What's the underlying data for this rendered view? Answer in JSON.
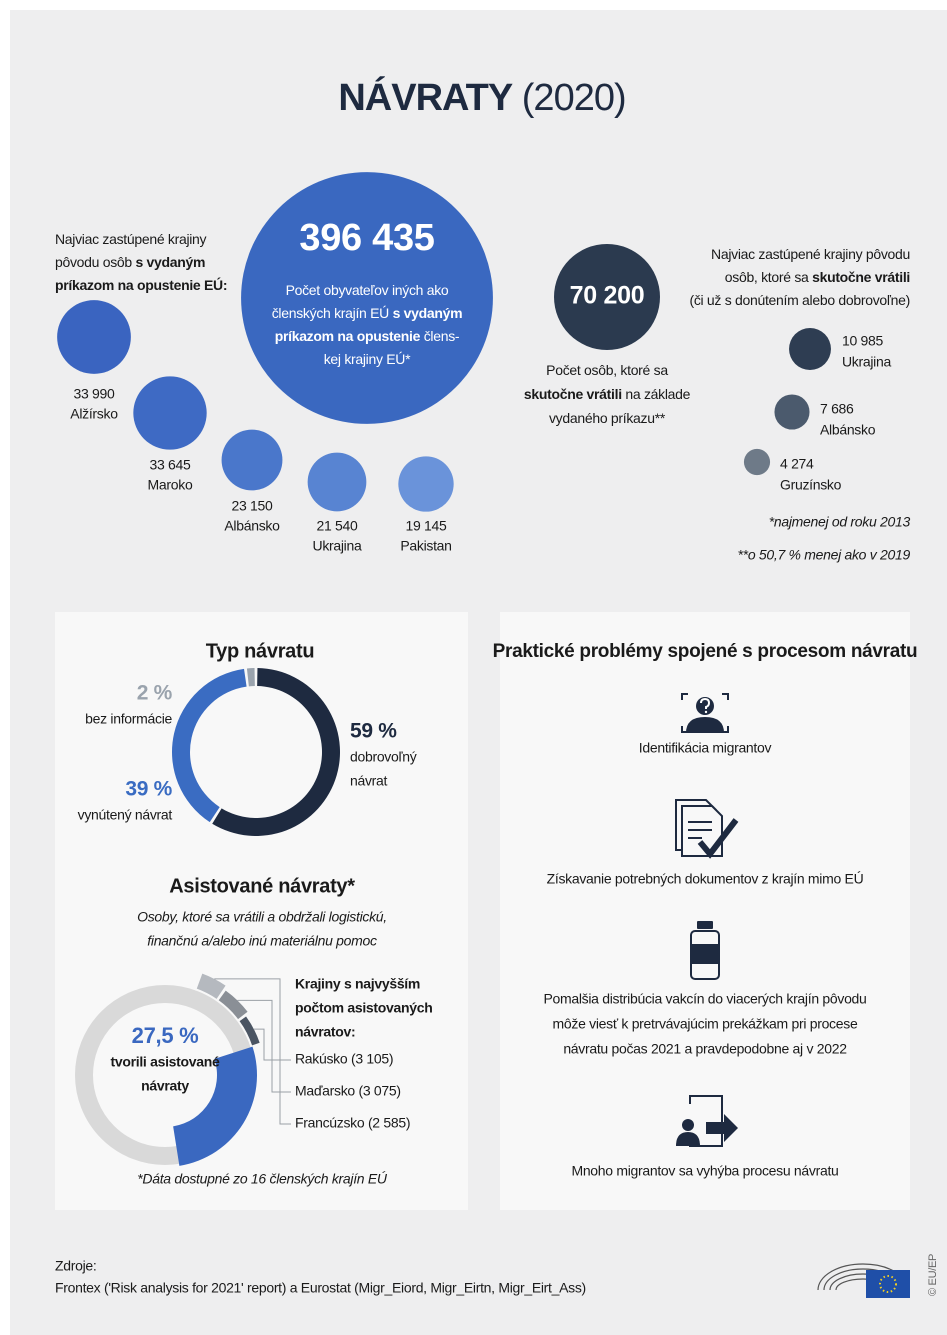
{
  "title": {
    "main": "NÁVRATY",
    "year": "(2020)"
  },
  "orders": {
    "intro": [
      [
        {
          "text": "Najviac zastúpené krajiny"
        }
      ],
      [
        {
          "text": "pôvodu osôb "
        },
        {
          "text": "s vydaným",
          "bold": true
        }
      ],
      [
        {
          "text": "príkazom na opustenie EÚ:",
          "bold": true
        }
      ]
    ],
    "total": {
      "value": 396435,
      "label": "396 435"
    },
    "color": "#3a68c0",
    "description": [
      [
        {
          "text": "Počet obyvateľov iných ako"
        }
      ],
      [
        {
          "text": "členských krajín EÚ "
        },
        {
          "text": "s vydaným",
          "bold": true
        }
      ],
      [
        {
          "text": "príkazom na opustenie",
          "bold": true
        },
        {
          "text": " člens-"
        }
      ],
      [
        {
          "text": "kej krajiny EÚ*"
        }
      ]
    ],
    "countries": [
      {
        "name": "Alžírsko",
        "value": 33990,
        "label": "33 990",
        "color": "#3a64c0"
      },
      {
        "name": "Maroko",
        "value": 33645,
        "label": "33 645",
        "color": "#3e6ac4"
      },
      {
        "name": "Albánsko",
        "value": 23150,
        "label": "23 150",
        "color": "#4a77cb"
      },
      {
        "name": "Ukrajina",
        "value": 21540,
        "label": "21 540",
        "color": "#5884d2"
      },
      {
        "name": "Pakistan",
        "value": 19145,
        "label": "19 145",
        "color": "#6a93da"
      }
    ]
  },
  "returns": {
    "intro": [
      [
        {
          "text": "Najviac zastúpené krajiny pôvodu"
        }
      ],
      [
        {
          "text": "osôb, ktoré sa "
        },
        {
          "text": "skutočne vrátili",
          "bold": true
        }
      ],
      [
        {
          "text": "(či už s donútením alebo dobrovoľne)"
        }
      ]
    ],
    "total": {
      "value": 70200,
      "label": "70 200"
    },
    "color": "#2b3a4f",
    "description": [
      [
        {
          "text": "Počet osôb, ktoré sa"
        }
      ],
      [
        {
          "text": "skutočne vrátili",
          "bold": true
        },
        {
          "text": " na základe"
        }
      ],
      [
        {
          "text": "vydaného príkazu**"
        }
      ]
    ],
    "countries": [
      {
        "name": "Ukrajina",
        "value": 10985,
        "label": "10 985",
        "color": "#2e3d52"
      },
      {
        "name": "Albánsko",
        "value": 7686,
        "label": "7 686",
        "color": "#4b5a6d"
      },
      {
        "name": "Gruzínsko",
        "value": 4274,
        "label": "4 274",
        "color": "#6e7a88"
      }
    ]
  },
  "notes": [
    "*najmenej od roku 2013",
    "**o 50,7 % menej ako v 2019"
  ],
  "return_type": {
    "title": "Typ návratu",
    "segments": [
      {
        "value": 59,
        "label": "59 %",
        "name": [
          "dobrovoľný",
          "návrat"
        ],
        "color": "#1e2a40"
      },
      {
        "value": 39,
        "label": "39 %",
        "name": [
          "vynútený návrat"
        ],
        "color": "#3a6cc2"
      },
      {
        "value": 2,
        "label": "2 %",
        "name": [
          "bez informácie"
        ],
        "color": "#9aa3ad"
      }
    ]
  },
  "assisted": {
    "title": "Asistované návraty*",
    "subtitle": [
      "Osoby, ktoré sa vrátili a obdržali logistickú,",
      "finančnú a/alebo inú materiálnu pomoc"
    ],
    "share": {
      "value": 27.5,
      "label": "27,5 %",
      "color": "#3a68c0"
    },
    "share_text": [
      "tvorili asistované",
      "návraty"
    ],
    "countries_title": [
      "Krajiny s najvyšším",
      "počtom asistovaných",
      "návratov:"
    ],
    "countries": [
      {
        "value": 3105,
        "label": "Rakúsko (3 105)",
        "color": "#4b5563"
      },
      {
        "value": 3075,
        "label": "Maďarsko (3 075)",
        "color": "#8a8f96"
      },
      {
        "value": 2585,
        "label": "Francúzsko (2 585)",
        "color": "#b5b9bf"
      }
    ],
    "note": "*Dáta dostupné zo 16 členských krajín EÚ"
  },
  "problems": {
    "title": "Praktické problémy spojené s procesom návratu",
    "items": [
      [
        "Identifikácia migrantov"
      ],
      [
        "Získavanie potrebných dokumentov z krajín mimo EÚ"
      ],
      [
        "Pomalšia distribúcia vakcín do viacerých krajín pôvodu",
        "môže viesť k pretrvávajúcim prekážkam pri procese",
        "návratu počas 2021 a pravdepodobne aj v 2022"
      ],
      [
        "Mnoho migrantov sa vyhýba procesu návratu"
      ]
    ]
  },
  "sources": {
    "label": "Zdroje:",
    "text": "Frontex ('Risk analysis for 2021' report) a Eurostat (Migr_Eiord, Migr_Eirtn, Migr_Eirt_Ass)"
  },
  "credit": "© EU/EP"
}
